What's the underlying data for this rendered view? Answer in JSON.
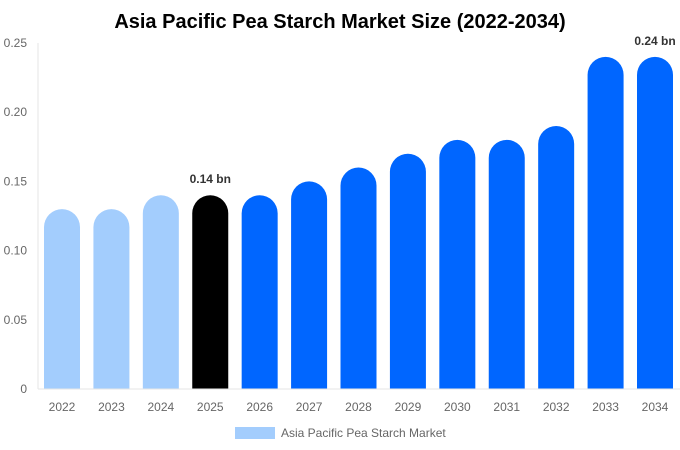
{
  "chart_data": {
    "type": "bar",
    "title": "Asia Pacific Pea Starch Market Size (2022-2034)",
    "xlabel": "",
    "ylabel": "",
    "categories": [
      "2022",
      "2023",
      "2024",
      "2025",
      "2026",
      "2027",
      "2028",
      "2029",
      "2030",
      "2031",
      "2032",
      "2033",
      "2034"
    ],
    "series": [
      {
        "name": "Asia Pacific Pea Starch Market",
        "values": [
          0.13,
          0.13,
          0.14,
          0.14,
          0.14,
          0.15,
          0.16,
          0.17,
          0.18,
          0.18,
          0.19,
          0.24,
          0.24
        ]
      }
    ],
    "ylim": [
      0,
      0.25
    ],
    "yticks": [
      "0",
      "0.05",
      "0.10",
      "0.15",
      "0.20",
      "0.25"
    ],
    "data_labels": [
      {
        "category": "2025",
        "text": "0.14 bn"
      },
      {
        "category": "2034",
        "text": "0.24 bn"
      }
    ],
    "bar_colors": {
      "historical": "#a3cdfd",
      "highlight": "#000000",
      "forecast": "#0066ff"
    },
    "bar_color_by_category": [
      "historical",
      "historical",
      "historical",
      "highlight",
      "forecast",
      "forecast",
      "forecast",
      "forecast",
      "forecast",
      "forecast",
      "forecast",
      "forecast",
      "forecast"
    ],
    "legend_placement": "bottom",
    "grid": false
  }
}
